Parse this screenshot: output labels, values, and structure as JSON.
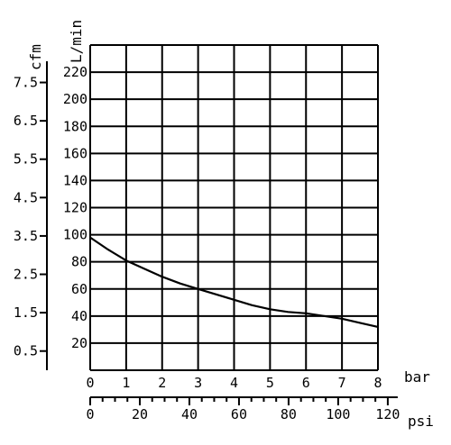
{
  "chart_data": {
    "type": "line",
    "x_unit_primary": "bar",
    "x_unit_secondary": "psi",
    "y_unit_left": "cfm",
    "y_unit_right": "L/min",
    "x_range": [
      0,
      8
    ],
    "y_range": [
      0,
      240
    ],
    "grid": true,
    "x_ticks_bar": [
      "0",
      "1",
      "2",
      "3",
      "4",
      "5",
      "6",
      "7",
      "8"
    ],
    "x_ticks_psi": [
      "0",
      "20",
      "40",
      "60",
      "80",
      "100",
      "120"
    ],
    "y_ticks_lmin": [
      "20",
      "40",
      "60",
      "80",
      "100",
      "120",
      "140",
      "160",
      "180",
      "200",
      "220"
    ],
    "y_ticks_cfm": [
      "0.5",
      "1.5",
      "2.5",
      "3.5",
      "4.5",
      "5.5",
      "6.5",
      "7.5"
    ],
    "series": [
      {
        "x": [
          0,
          0.5,
          1,
          1.5,
          2,
          2.5,
          3,
          3.5,
          4,
          4.5,
          5,
          5.5,
          6,
          6.5,
          7,
          7.5,
          8
        ],
        "y": [
          98,
          89,
          81,
          75,
          69,
          64,
          60,
          56,
          52,
          48,
          45,
          43,
          42,
          40,
          38,
          35,
          32
        ]
      }
    ]
  }
}
